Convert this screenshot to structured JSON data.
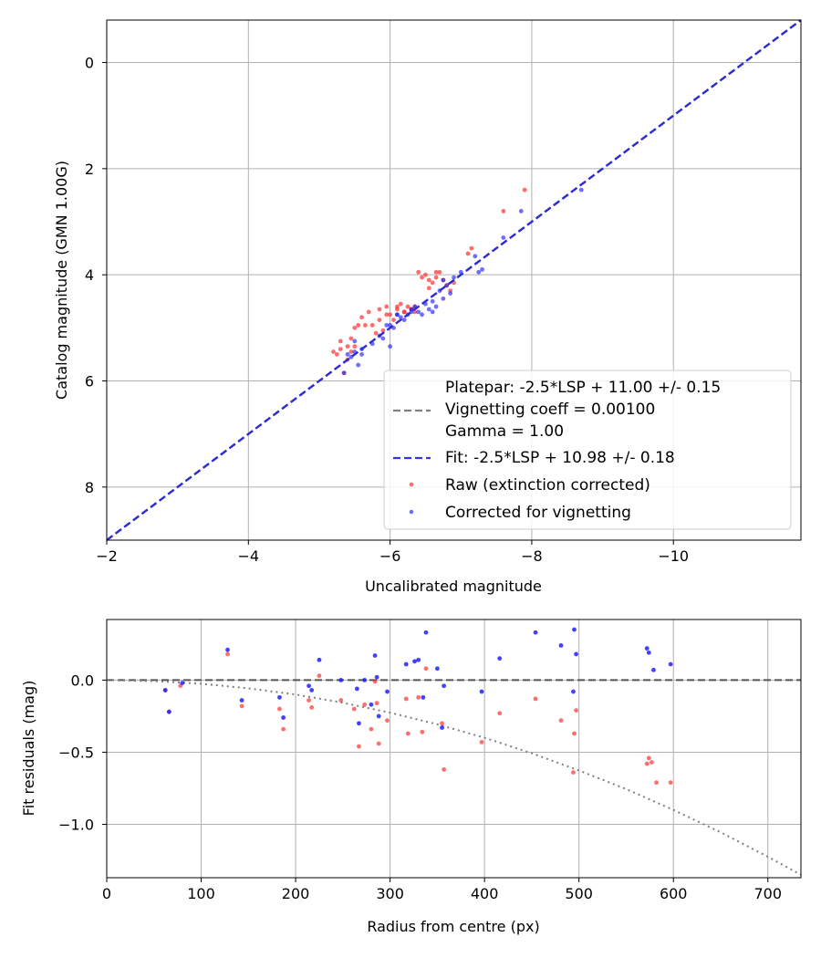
{
  "chart_data": [
    {
      "type": "scatter",
      "name": "calibration",
      "xlabel": "Uncalibrated magnitude",
      "ylabel": "Catalog magnitude (GMN 1.00G)",
      "xlim": [
        -2.0,
        -11.8
      ],
      "ylim": [
        9.0,
        -0.8
      ],
      "xticks": [
        -2,
        -4,
        -6,
        -8,
        -10
      ],
      "xtick_labels": [
        "−2",
        "−4",
        "−6",
        "−8",
        "−10"
      ],
      "yticks": [
        0,
        2,
        4,
        6,
        8
      ],
      "ytick_labels": [
        "0",
        "2",
        "4",
        "6",
        "8"
      ],
      "grid": true,
      "legend_position": "lower-right",
      "legend": {
        "platepar": "Platepar: -2.5*LSP + 11.00 +/- 0.15",
        "vignetting": "Vignetting coeff = 0.00100",
        "gamma": "Gamma = 1.00",
        "fit": "Fit: -2.5*LSP + 10.98 +/- 0.18",
        "raw": "Raw (extinction corrected)",
        "corrected": "Corrected for vignetting"
      },
      "fit_line": {
        "x": [
          -2.0,
          -11.8
        ],
        "y": [
          9.0,
          -0.8
        ]
      },
      "series": [
        {
          "name": "Raw (extinction corrected)",
          "color": "#ff2020",
          "x": [
            -5.2,
            -5.25,
            -5.3,
            -5.35,
            -5.4,
            -5.45,
            -5.5,
            -5.55,
            -5.6,
            -5.7,
            -5.75,
            -5.8,
            -5.85,
            -5.9,
            -5.95,
            -6.0,
            -6.05,
            -6.1,
            -6.15,
            -6.2,
            -6.25,
            -6.3,
            -6.35,
            -6.4,
            -6.5,
            -6.55,
            -6.6,
            -6.65,
            -6.7,
            -6.75,
            -6.8,
            -6.85,
            -6.9,
            -7.1,
            -7.15,
            -7.6,
            -7.9,
            -5.3,
            -5.4,
            -5.45,
            -5.5,
            -5.65,
            -5.85,
            -5.95,
            -6.1,
            -6.2,
            -6.3,
            -6.35,
            -6.45,
            -6.55,
            -6.65
          ],
          "y": [
            5.45,
            5.5,
            5.4,
            5.85,
            5.35,
            5.2,
            5.0,
            4.95,
            4.8,
            4.7,
            4.95,
            5.1,
            4.65,
            5.05,
            4.6,
            4.75,
            4.85,
            4.65,
            4.55,
            4.7,
            4.6,
            4.65,
            4.7,
            3.95,
            4.0,
            4.25,
            4.15,
            4.05,
            3.95,
            4.1,
            4.2,
            4.3,
            4.15,
            3.6,
            3.5,
            2.8,
            2.4,
            5.25,
            5.6,
            5.45,
            5.35,
            4.95,
            4.85,
            4.75,
            4.6,
            4.7,
            4.65,
            4.6,
            4.05,
            4.1,
            3.95
          ]
        },
        {
          "name": "Corrected for vignetting",
          "color": "#2020ff",
          "x": [
            -5.35,
            -5.4,
            -5.45,
            -5.5,
            -5.55,
            -5.6,
            -5.75,
            -5.85,
            -5.9,
            -5.95,
            -6.0,
            -6.05,
            -6.1,
            -6.15,
            -6.2,
            -6.25,
            -6.3,
            -6.35,
            -6.45,
            -6.5,
            -6.55,
            -6.6,
            -6.65,
            -6.7,
            -6.75,
            -6.8,
            -6.85,
            -6.9,
            -7.0,
            -7.2,
            -7.25,
            -7.3,
            -7.6,
            -7.85,
            -8.7,
            -5.5,
            -5.6,
            -6.0,
            -6.1,
            -6.3,
            -6.4,
            -6.6,
            -6.75
          ],
          "y": [
            5.85,
            5.5,
            5.55,
            5.25,
            5.7,
            5.4,
            5.3,
            5.15,
            5.2,
            4.95,
            5.35,
            5.0,
            4.75,
            4.8,
            4.85,
            4.75,
            4.7,
            4.6,
            4.75,
            4.55,
            4.65,
            4.5,
            4.6,
            4.3,
            4.45,
            4.2,
            4.35,
            4.05,
            3.95,
            3.65,
            3.95,
            3.9,
            3.3,
            2.8,
            2.4,
            5.45,
            5.5,
            4.95,
            4.75,
            4.65,
            4.7,
            4.7,
            4.1
          ]
        }
      ]
    },
    {
      "type": "scatter",
      "name": "residuals",
      "xlabel": "Radius from centre (px)",
      "ylabel": "Fit residuals (mag)",
      "xlim": [
        0,
        735
      ],
      "ylim": [
        -1.37,
        0.42
      ],
      "xticks": [
        0,
        100,
        200,
        300,
        400,
        500,
        600,
        700
      ],
      "xtick_labels": [
        "0",
        "100",
        "200",
        "300",
        "400",
        "500",
        "600",
        "700"
      ],
      "yticks": [
        0.0,
        -0.5,
        -1.0
      ],
      "ytick_labels": [
        "0.0",
        "−0.5",
        "−1.0"
      ],
      "grid": true,
      "zero_line": 0.0,
      "vignetting_curve": {
        "x": [
          0,
          50,
          100,
          150,
          200,
          250,
          300,
          350,
          400,
          450,
          500,
          550,
          600,
          650,
          700,
          735
        ],
        "y": [
          0.0,
          -0.007,
          -0.025,
          -0.057,
          -0.1,
          -0.157,
          -0.226,
          -0.307,
          -0.4,
          -0.507,
          -0.627,
          -0.756,
          -0.9,
          -1.055,
          -1.225,
          -1.35
        ]
      },
      "series": [
        {
          "name": "Raw (extinction corrected)",
          "color": "#ff2020",
          "x": [
            62,
            66,
            78,
            128,
            143,
            183,
            187,
            214,
            217,
            225,
            248,
            262,
            267,
            273,
            280,
            284,
            286,
            288,
            297,
            317,
            319,
            330,
            334,
            338,
            355,
            357,
            397,
            416,
            454,
            481,
            494,
            495,
            497,
            572,
            574,
            577,
            582,
            597
          ],
          "y": [
            -0.07,
            -0.22,
            -0.04,
            0.18,
            -0.18,
            -0.2,
            -0.34,
            -0.14,
            -0.19,
            0.03,
            -0.14,
            -0.2,
            -0.46,
            -0.17,
            -0.34,
            -0.01,
            -0.16,
            -0.44,
            -0.28,
            -0.13,
            -0.37,
            -0.12,
            -0.36,
            0.08,
            -0.3,
            -0.62,
            -0.43,
            -0.23,
            -0.13,
            -0.28,
            -0.64,
            -0.37,
            -0.21,
            -0.58,
            -0.54,
            -0.57,
            -0.71,
            -0.71
          ]
        },
        {
          "name": "Corrected for vignetting",
          "color": "#2020ff",
          "x": [
            62,
            66,
            80,
            128,
            143,
            183,
            187,
            214,
            217,
            225,
            248,
            265,
            267,
            273,
            280,
            284,
            286,
            288,
            297,
            317,
            326,
            330,
            335,
            338,
            350,
            355,
            357,
            397,
            416,
            454,
            481,
            494,
            495,
            497,
            572,
            574,
            579,
            597
          ],
          "y": [
            -0.07,
            -0.22,
            -0.02,
            0.21,
            -0.14,
            -0.12,
            -0.26,
            -0.04,
            -0.07,
            0.14,
            0.0,
            -0.06,
            -0.3,
            0.0,
            -0.17,
            0.17,
            0.02,
            -0.25,
            -0.08,
            0.11,
            0.13,
            0.14,
            -0.12,
            0.33,
            0.08,
            -0.33,
            -0.04,
            -0.08,
            0.15,
            0.33,
            0.24,
            -0.08,
            0.35,
            0.18,
            0.22,
            0.19,
            0.07,
            0.11
          ]
        }
      ]
    }
  ]
}
